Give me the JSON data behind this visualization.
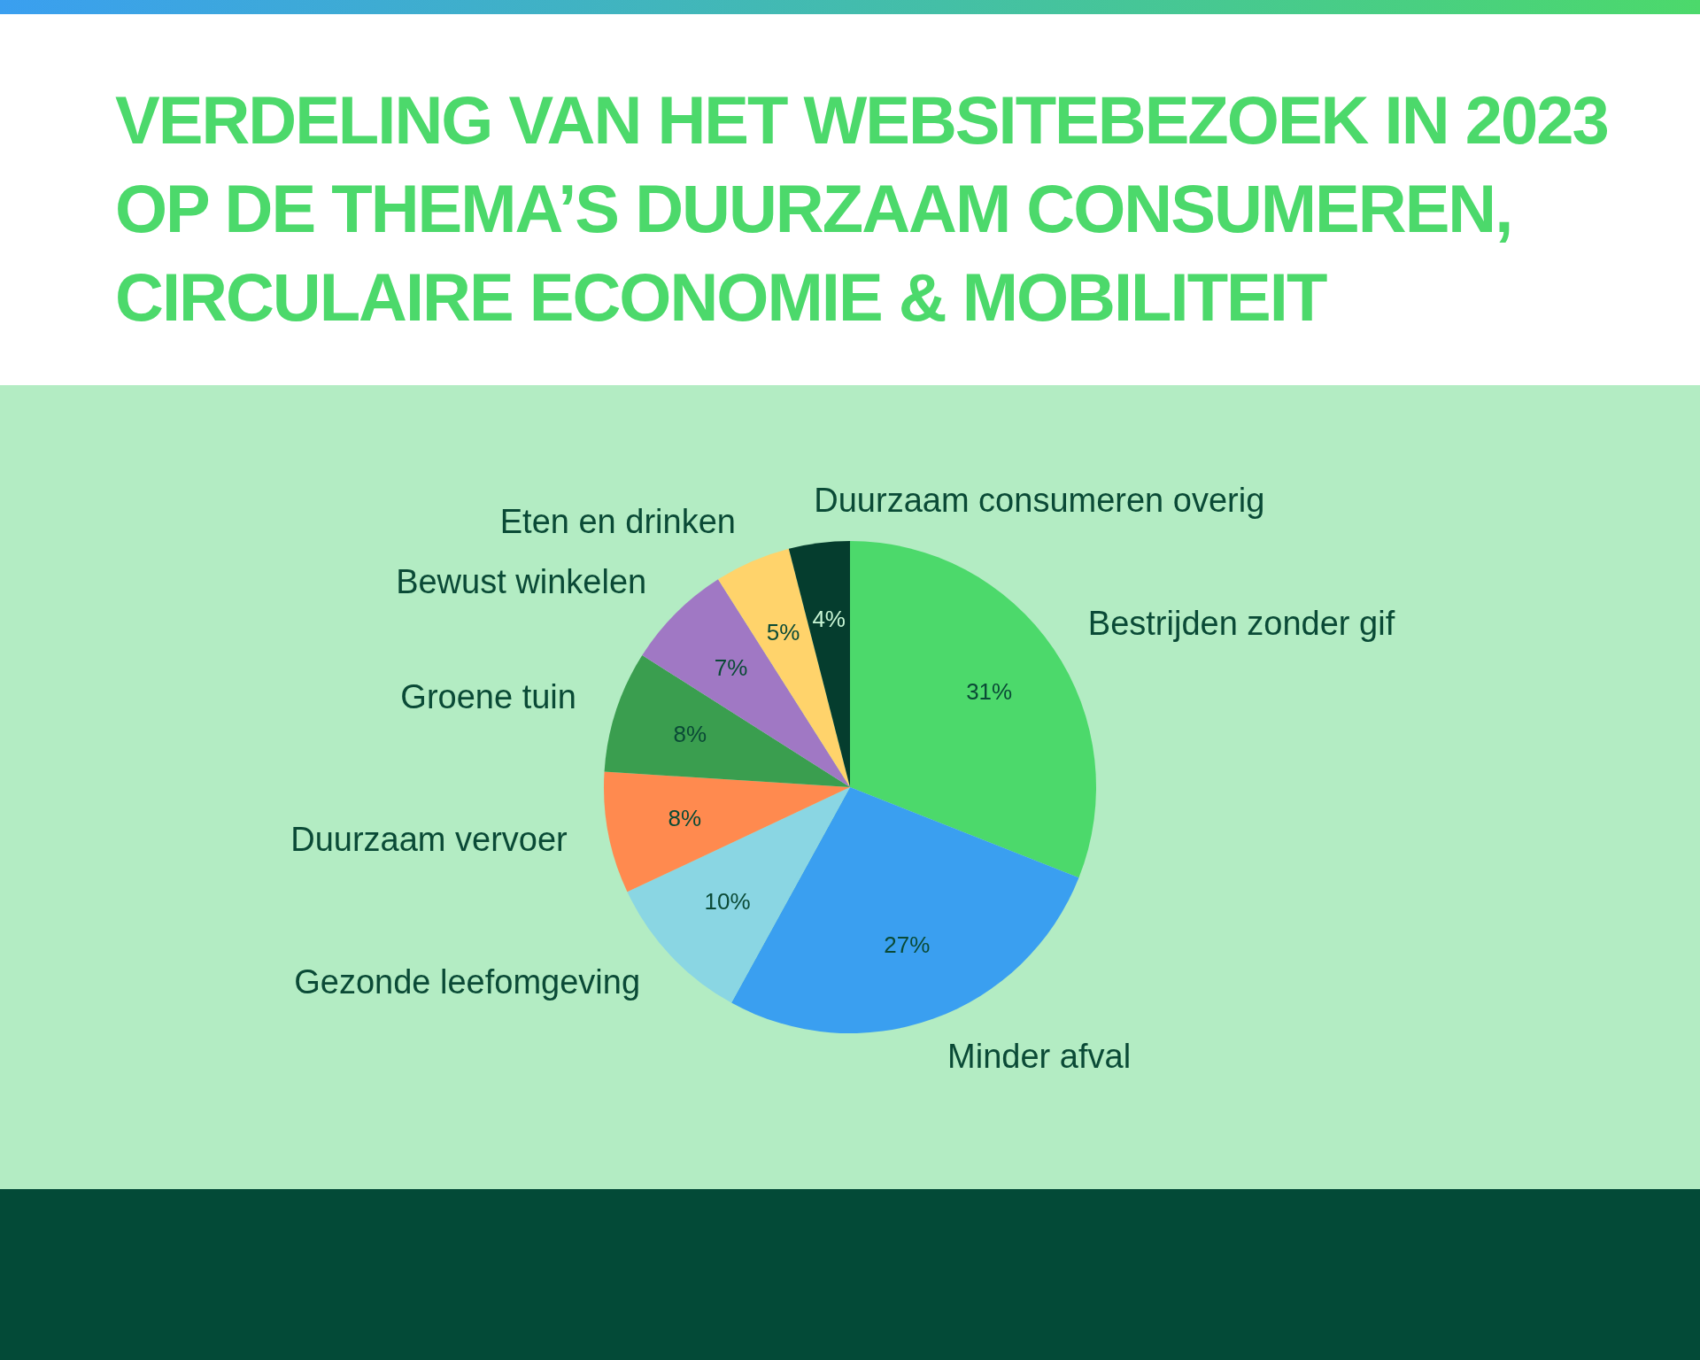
{
  "chart_data": {
    "type": "pie",
    "title": "VERDELING VAN HET WEBSITEBEZOEK IN 2023 OP DE THEMA’S DUURZAAM CONSUMEREN, CIRCULAIRE ECONOMIE & MOBILITEIT",
    "categories": [
      "Bestrijden zonder gif",
      "Minder afval",
      "Gezonde leefomgeving",
      "Duurzaam vervoer",
      "Groene tuin",
      "Bewust winkelen",
      "Eten en drinken",
      "Duurzaam consumeren overig"
    ],
    "values": [
      31,
      27,
      10,
      8,
      8,
      7,
      5,
      4
    ],
    "colors": [
      "#4cd96b",
      "#3a9ff0",
      "#8ad6e3",
      "#ff8a4f",
      "#3a9e4f",
      "#a078c4",
      "#ffd36b",
      "#053d2e"
    ],
    "value_labels": [
      "31%",
      "27%",
      "10%",
      "8%",
      "8%",
      "7%",
      "5%",
      "4%"
    ]
  }
}
